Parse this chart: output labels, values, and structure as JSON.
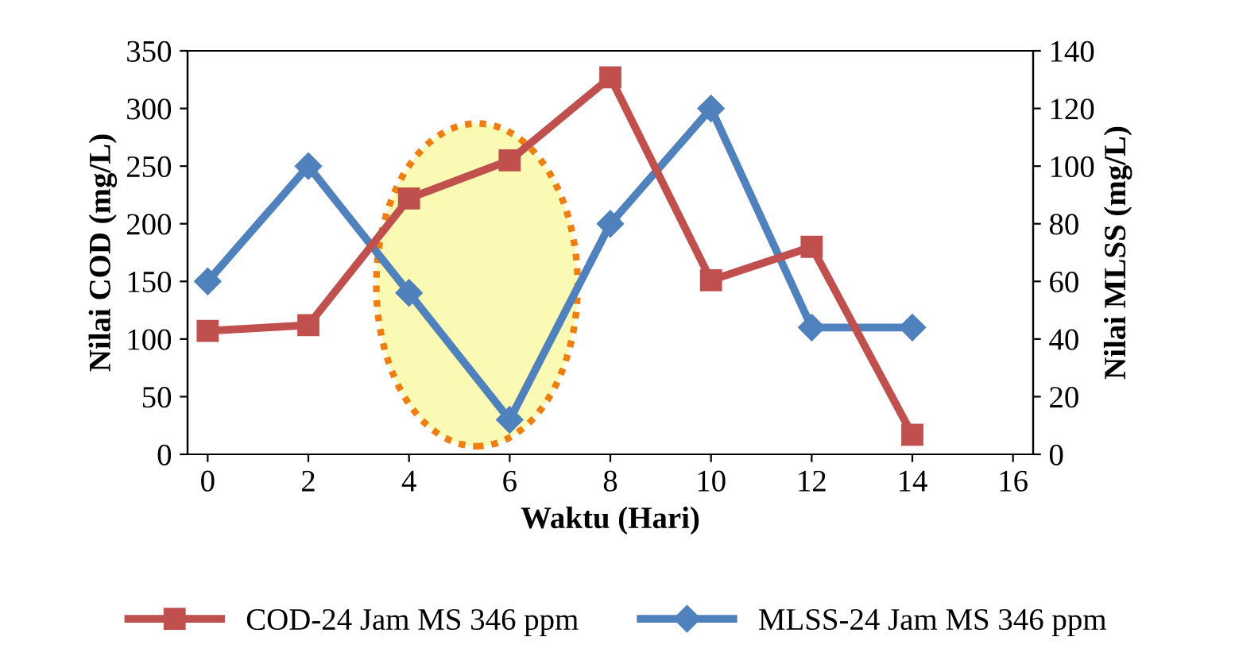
{
  "chart_data": {
    "type": "line",
    "xlabel": "Waktu (Hari)",
    "ylabel": "Nilai COD (mg/L)",
    "y2label": "Nilai MLSS (mg/L)",
    "x": [
      0,
      2,
      4,
      6,
      8,
      10,
      12,
      14
    ],
    "series": [
      {
        "name": "COD-24 Jam MS 346 ppm",
        "color": "#c0504d",
        "marker": "square",
        "values": [
          107,
          112,
          222,
          255,
          327,
          151,
          180,
          17
        ]
      },
      {
        "name": "MLSS-24 Jam MS 346 ppm",
        "color": "#4f81bd",
        "marker": "diamond",
        "axis": "y2",
        "values": [
          60,
          100,
          56,
          12,
          80,
          120,
          44,
          44
        ]
      }
    ],
    "xlim": [
      -0.4,
      16.4
    ],
    "xticks": [
      0,
      2,
      4,
      6,
      8,
      10,
      12,
      14,
      16
    ],
    "ylim": [
      0,
      350
    ],
    "yticks": [
      0,
      50,
      100,
      150,
      200,
      250,
      300,
      350
    ],
    "y2lim": [
      0,
      140
    ],
    "y2ticks": [
      0,
      20,
      40,
      60,
      80,
      100,
      120,
      140
    ],
    "grid": false,
    "legend": "bottom"
  }
}
